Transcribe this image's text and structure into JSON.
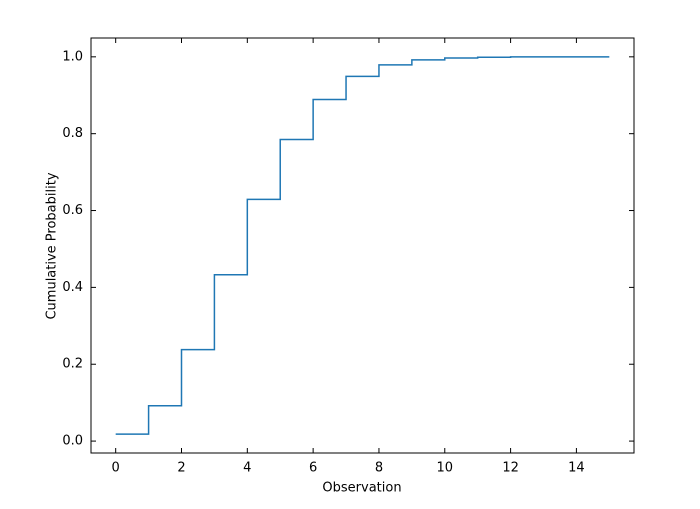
{
  "chart_data": {
    "type": "step",
    "x_label": "Observation",
    "y_label": "Cumulative Probability",
    "x": [
      0,
      1,
      2,
      3,
      4,
      5,
      6,
      7,
      8,
      9,
      10,
      11,
      12,
      13,
      14,
      15
    ],
    "series": [
      {
        "color": "#1f77b4",
        "values": [
          0.018,
          0.092,
          0.238,
          0.433,
          0.629,
          0.785,
          0.889,
          0.949,
          0.979,
          0.992,
          0.997,
          0.999,
          1.0,
          1.0,
          1.0,
          1.0
        ]
      }
    ],
    "xlim": [
      -0.75,
      15.75
    ],
    "xticks": [
      0,
      2,
      4,
      6,
      8,
      10,
      12,
      14
    ],
    "ylim": [
      -0.031,
      1.049
    ],
    "yticks": [
      {
        "value": 0,
        "label": "0.0"
      },
      {
        "value": 0.2,
        "label": "0.2"
      },
      {
        "value": 0.4,
        "label": "0.4"
      },
      {
        "value": 0.6,
        "label": "0.6"
      },
      {
        "value": 0.8,
        "label": "0.8"
      },
      {
        "value": 1,
        "label": "1.0"
      }
    ]
  }
}
